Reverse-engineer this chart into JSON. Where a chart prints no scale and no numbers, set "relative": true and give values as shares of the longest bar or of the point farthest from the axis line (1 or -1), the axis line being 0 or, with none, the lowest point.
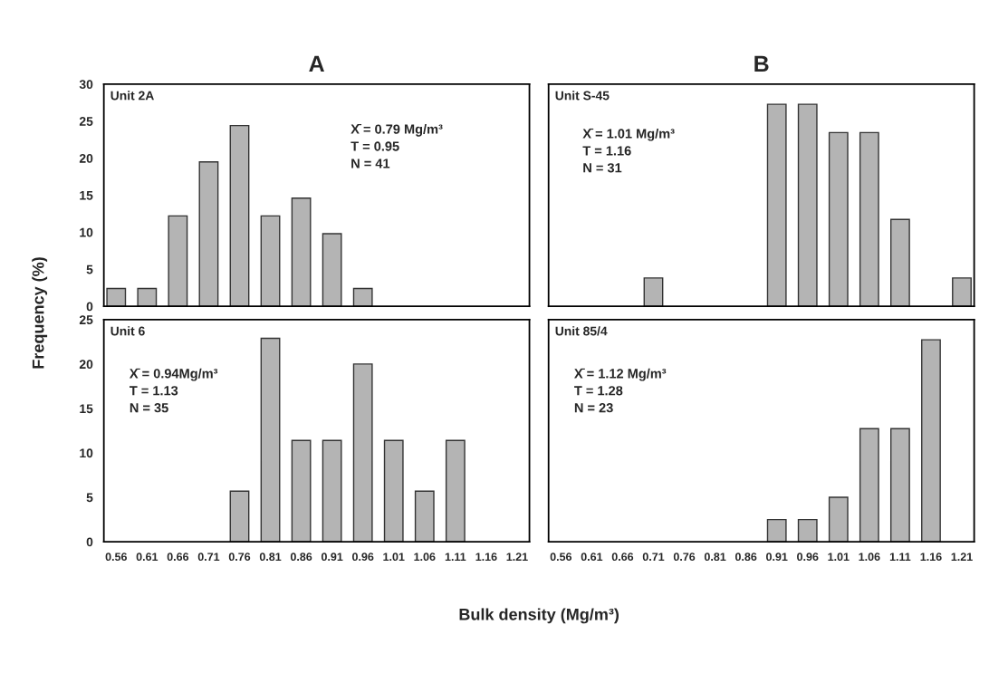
{
  "chart_data": [
    {
      "type": "bar",
      "title": "A",
      "ylabel": "Frequency (%)",
      "categories": [
        "0.56",
        "0.61",
        "0.66",
        "0.71",
        "0.76",
        "0.81",
        "0.86",
        "0.91",
        "0.96",
        "1.01",
        "1.06",
        "1.11",
        "1.16",
        "1.21"
      ],
      "values": [
        2.4,
        2.4,
        12.2,
        19.5,
        24.4,
        12.2,
        14.6,
        9.8,
        2.4,
        0,
        0,
        0,
        0,
        0
      ],
      "color": "#b4b4b4",
      "ylim": [
        0,
        30
      ],
      "yticks": [
        0,
        5,
        10,
        15,
        20,
        25,
        30
      ],
      "tick_labels": "y",
      "grid": false,
      "annotations": [
        "Unit 2A",
        "X̄ = 0.79 Mg/m³\nT = 0.95\nN = 41"
      ]
    },
    {
      "type": "bar",
      "title": "B",
      "categories": [
        "0.56",
        "0.61",
        "0.66",
        "0.71",
        "0.76",
        "0.81",
        "0.86",
        "0.91",
        "0.96",
        "1.01",
        "1.06",
        "1.11",
        "1.16",
        "1.21"
      ],
      "values": [
        0,
        0,
        0,
        0.14,
        0,
        0,
        0,
        1,
        1,
        0.86,
        0.86,
        0.43,
        0,
        0.14
      ],
      "color": "#b4b4b4",
      "relative": true,
      "tick_labels": false,
      "grid": false,
      "annotations": [
        "Unit S-45",
        "X̄ = 1.01 Mg/m³\nT = 1.16\nN = 31"
      ]
    },
    {
      "type": "bar",
      "xlabel": "Bulk density (Mg/m³)",
      "categories": [
        "0.56",
        "0.61",
        "0.66",
        "0.71",
        "0.76",
        "0.81",
        "0.86",
        "0.91",
        "0.96",
        "1.01",
        "1.06",
        "1.11",
        "1.16",
        "1.21"
      ],
      "values": [
        0,
        0,
        0,
        0,
        5.7,
        22.9,
        11.4,
        11.4,
        20.0,
        11.4,
        5.7,
        11.4,
        0,
        0
      ],
      "color": "#b4b4b4",
      "ylim": [
        0,
        25
      ],
      "yticks": [
        0,
        5,
        10,
        15,
        20,
        25
      ],
      "grid": false,
      "annotations": [
        "Unit 6",
        "X̄ = 0.94Mg/m³\nT = 1.13\nN = 35"
      ]
    },
    {
      "type": "bar",
      "categories": [
        "0.56",
        "0.61",
        "0.66",
        "0.71",
        "0.76",
        "0.81",
        "0.86",
        "0.91",
        "0.96",
        "1.01",
        "1.06",
        "1.11",
        "1.16",
        "1.21"
      ],
      "values": [
        0,
        0,
        0,
        0,
        0,
        0,
        0,
        0.11,
        0.11,
        0.22,
        0.56,
        0.56,
        1,
        0
      ],
      "color": "#b4b4b4",
      "relative": true,
      "tick_labels": "x",
      "grid": false,
      "annotations": [
        "Unit 85/4",
        "X̄ = 1.12 Mg/m³\nT = 1.28\nN = 23"
      ]
    }
  ]
}
